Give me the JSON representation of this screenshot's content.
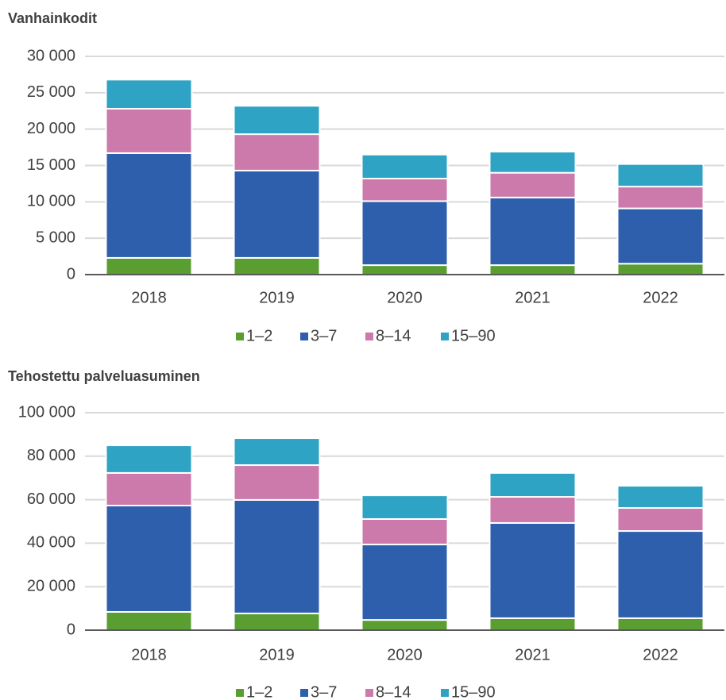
{
  "chart_data": [
    {
      "type": "bar",
      "stacked": true,
      "title": "Vanhainkodit",
      "categories": [
        "2018",
        "2019",
        "2020",
        "2021",
        "2022"
      ],
      "series": [
        {
          "name": "1–2",
          "color": "#5a9e32",
          "values": [
            2300,
            2300,
            1300,
            1300,
            1500
          ]
        },
        {
          "name": "3–7",
          "color": "#2e5fac",
          "values": [
            14400,
            12000,
            8800,
            9300,
            7600
          ]
        },
        {
          "name": "8–14",
          "color": "#cc79ab",
          "values": [
            6100,
            5000,
            3100,
            3400,
            3000
          ]
        },
        {
          "name": "15–90",
          "color": "#2ea3c4",
          "values": [
            4000,
            3900,
            3300,
            2900,
            3100
          ]
        }
      ],
      "ylim": [
        0,
        30000
      ],
      "yticks": [
        0,
        {
          "value": 5000,
          "label": "5 000"
        },
        {
          "value": 10000,
          "label": "10 000"
        },
        {
          "value": 15000,
          "label": "15 000"
        },
        {
          "value": 20000,
          "label": "20 000"
        },
        {
          "value": 25000,
          "label": "25 000"
        },
        {
          "value": 30000,
          "label": "30 000"
        }
      ],
      "grid": true,
      "legend": "bottom"
    },
    {
      "type": "bar",
      "stacked": true,
      "title": "Tehostettu palveluasuminen",
      "categories": [
        "2018",
        "2019",
        "2020",
        "2021",
        "2022"
      ],
      "series": [
        {
          "name": "1–2",
          "color": "#5a9e32",
          "values": [
            8400,
            7700,
            4700,
            5500,
            5500
          ]
        },
        {
          "name": "3–7",
          "color": "#2e5fac",
          "values": [
            48900,
            52200,
            34700,
            43800,
            40100
          ]
        },
        {
          "name": "8–14",
          "color": "#cc79ab",
          "values": [
            15000,
            16000,
            11700,
            12000,
            10600
          ]
        },
        {
          "name": "15–90",
          "color": "#2ea3c4",
          "values": [
            12700,
            12400,
            10900,
            11000,
            10200
          ]
        }
      ],
      "ylim": [
        0,
        100000
      ],
      "yticks": [
        0,
        {
          "value": 20000,
          "label": "20 000"
        },
        {
          "value": 40000,
          "label": "40 000"
        },
        {
          "value": 60000,
          "label": "60 000"
        },
        {
          "value": 80000,
          "label": "80 000"
        },
        {
          "value": 100000,
          "label": "100 000"
        }
      ],
      "grid": true,
      "legend": "bottom"
    }
  ]
}
